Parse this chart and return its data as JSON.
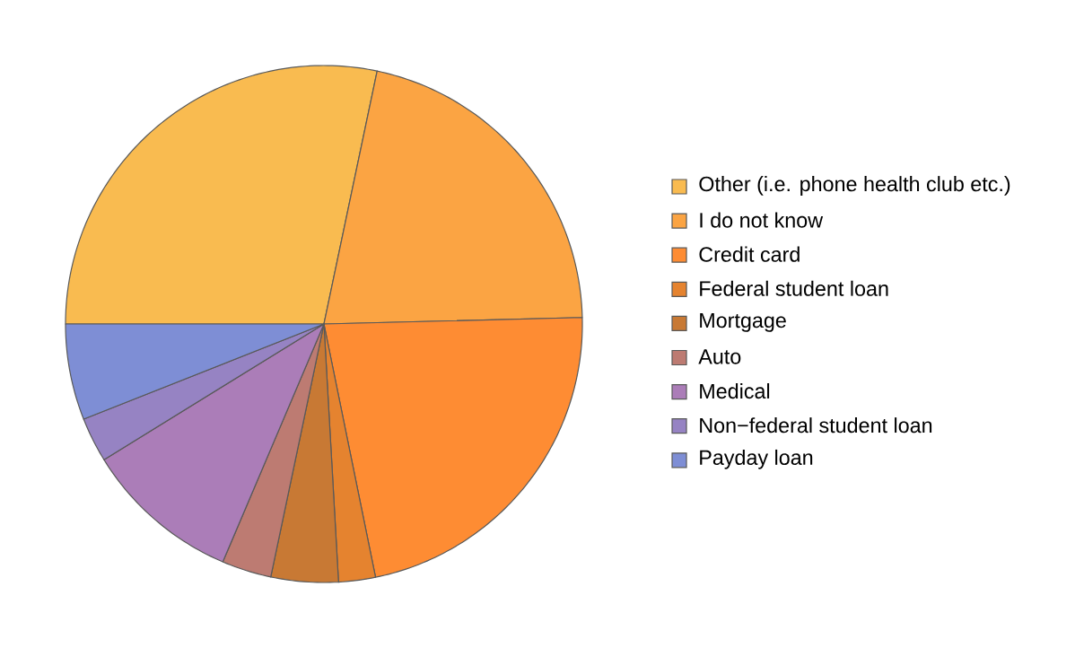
{
  "chart_data": {
    "type": "pie",
    "legend": "right",
    "categories": [
      "Other (i.e. phone health club etc.)",
      "I do not know",
      "Credit card",
      "Federal student loan",
      "Mortgage",
      "Auto",
      "Medical",
      "Non−federal student loan",
      "Payday loan"
    ],
    "values": [
      28.3,
      21.3,
      22.2,
      2.3,
      4.2,
      3.1,
      9.8,
      2.8,
      6.0
    ],
    "colors": [
      "#f9bb50",
      "#fba443",
      "#fe8c33",
      "#e5832f",
      "#c87934",
      "#bd7b72",
      "#ab7db8",
      "#9683c3",
      "#7e8ed5"
    ]
  }
}
